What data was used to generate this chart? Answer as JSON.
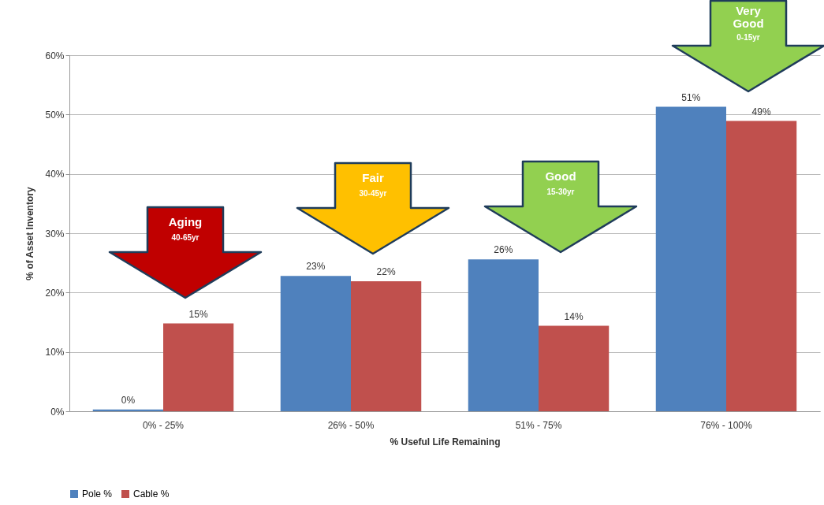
{
  "chart_data": {
    "type": "bar",
    "xlabel": "% Useful Life Remaining",
    "ylabel": "% of Asset Inventory",
    "categories": [
      "0% - 25%",
      "26% - 50%",
      "51% - 75%",
      "76% - 100%"
    ],
    "series": [
      {
        "name": "Pole %",
        "color": "#4f81bd",
        "values": [
          0.3,
          22.8,
          25.6,
          51.3
        ],
        "value_labels": [
          "0%",
          "23%",
          "26%",
          "51%"
        ]
      },
      {
        "name": "Cable %",
        "color": "#c0504d",
        "values": [
          14.8,
          21.9,
          14.4,
          48.9
        ],
        "value_labels": [
          "15%",
          "22%",
          "14%",
          "49%"
        ]
      }
    ],
    "ylim": [
      0,
      60
    ],
    "yticks": [
      {
        "value": 0,
        "label": "0%"
      },
      {
        "value": 10,
        "label": "10%"
      },
      {
        "value": 20,
        "label": "20%"
      },
      {
        "value": 30,
        "label": "30%"
      },
      {
        "value": 40,
        "label": "40%"
      },
      {
        "value": 50,
        "label": "50%"
      },
      {
        "value": 60,
        "label": "60%"
      }
    ],
    "grid": "y",
    "legend": "bottom",
    "annotations": [
      "Aging\n40-65yr",
      "Fair\n30-45yr",
      "Good\n15-30yr",
      "Very\nGood\n0-15yr"
    ]
  }
}
